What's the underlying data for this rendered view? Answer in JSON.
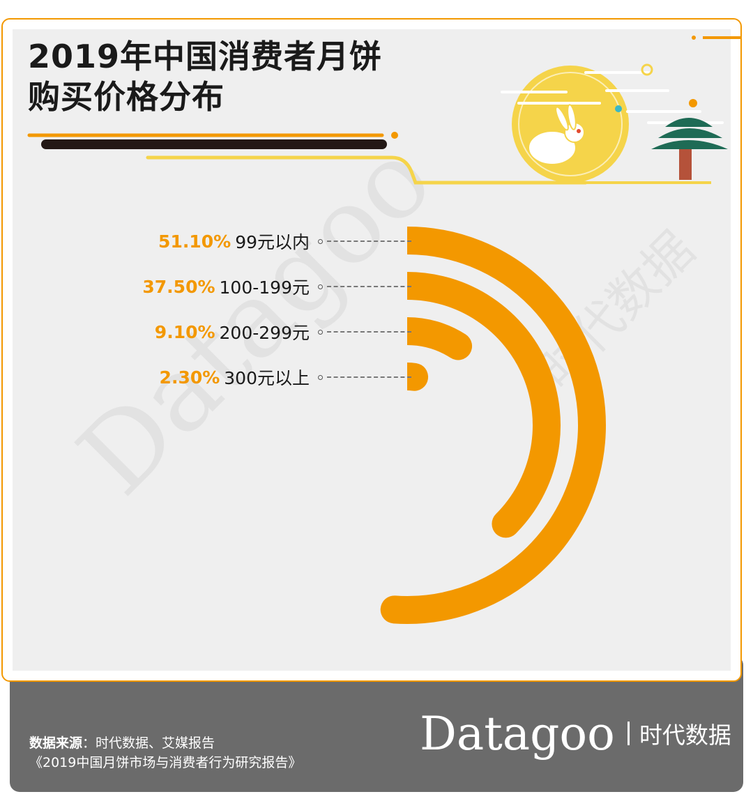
{
  "title": {
    "line1": "2019年中国消费者月饼",
    "line2": "购买价格分布"
  },
  "colors": {
    "accent": "#f39800",
    "footer": "#6b6b6b",
    "moon": "#f5d44a",
    "tree": "#1e6b55",
    "trunk": "#b5523a"
  },
  "chart_data": {
    "type": "radial_bar",
    "title": "2019年中国消费者月饼购买价格分布",
    "categories": [
      "99元以内",
      "100-199元",
      "200-299元",
      "300元以上"
    ],
    "values": [
      51.1,
      37.5,
      9.1,
      2.3
    ],
    "value_labels": [
      "51.10%",
      "37.50%",
      "9.10%",
      "2.30%"
    ],
    "unit": "%",
    "max_value": 100
  },
  "watermark": {
    "latin": "Datagoo",
    "cn": "时代数据"
  },
  "footer": {
    "source_label": "数据来源",
    "source_text": "：时代数据、艾媒报告",
    "report": "《2019中国月饼市场与消费者行为研究报告》",
    "brand_name": "Datagoo",
    "brand_cn": "时代数据"
  }
}
